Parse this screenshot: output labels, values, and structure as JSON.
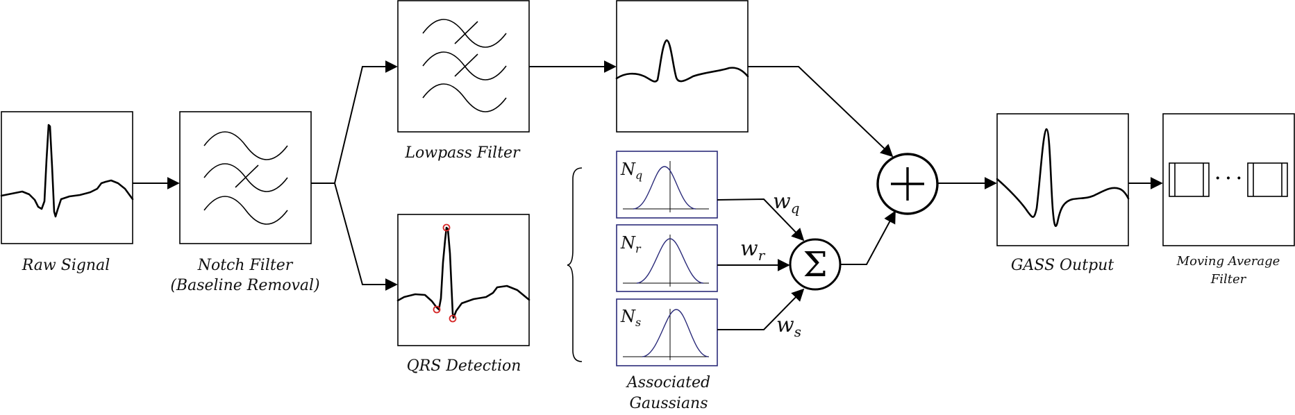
{
  "blocks": {
    "raw_signal": "Raw Signal",
    "notch_filter_line1": "Notch Filter",
    "notch_filter_line2": "(Baseline Removal)",
    "lowpass_filter": "Lowpass Filter",
    "qrs_detection": "QRS Detection",
    "associated_gaussians_line1": "Associated",
    "associated_gaussians_line2": "Gaussians",
    "gass_output": "GASS Output",
    "moving_average_line1": "Moving Average",
    "moving_average_line2": "Filter"
  },
  "gaussians": [
    {
      "symbol": "N",
      "sub": "q"
    },
    {
      "symbol": "N",
      "sub": "r"
    },
    {
      "symbol": "N",
      "sub": "s"
    }
  ],
  "weights": [
    {
      "symbol": "w",
      "sub": "q"
    },
    {
      "symbol": "w",
      "sub": "r"
    },
    {
      "symbol": "w",
      "sub": "s"
    }
  ],
  "symbols": {
    "sum": "Σ",
    "plus": "+",
    "ellipsis": "· · ·"
  },
  "colors": {
    "stroke": "#000000",
    "gaussian": "#2b2b7a",
    "qrs_marker": "#d62828"
  }
}
